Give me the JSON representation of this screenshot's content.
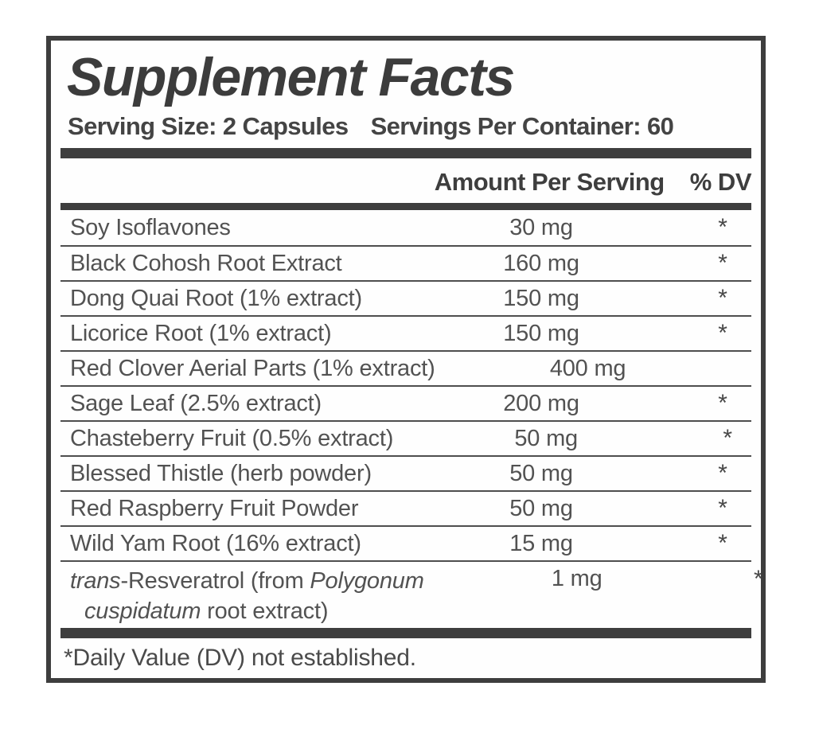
{
  "panel": {
    "title": "Supplement Facts",
    "serving_size": "Serving Size: 2 Capsules",
    "servings_per_container": "Servings Per Container: 60",
    "columns": {
      "amount": "Amount Per Serving",
      "dv": "% DV"
    },
    "rows": [
      {
        "name": "Soy Isoflavones",
        "amount": "30 mg",
        "dv": "*"
      },
      {
        "name": "Black Cohosh Root Extract",
        "amount": "160 mg",
        "dv": "*"
      },
      {
        "name": "Dong Quai Root (1% extract)",
        "amount": "150 mg",
        "dv": "*"
      },
      {
        "name": "Licorice Root (1% extract)",
        "amount": "150 mg",
        "dv": "*"
      },
      {
        "name": "Red Clover Aerial Parts (1% extract)",
        "amount": "400 mg",
        "dv": "*"
      },
      {
        "name": "Sage Leaf (2.5% extract)",
        "amount": "200 mg",
        "dv": "*"
      },
      {
        "name": "Chasteberry Fruit (0.5% extract)",
        "amount": "50 mg",
        "dv": "*"
      },
      {
        "name": "Blessed Thistle (herb powder)",
        "amount": "50 mg",
        "dv": "*"
      },
      {
        "name": "Red Raspberry Fruit Powder",
        "amount": "50 mg",
        "dv": "*"
      },
      {
        "name": "Wild Yam Root (16% extract)",
        "amount": "15 mg",
        "dv": "*"
      }
    ],
    "last_row": {
      "name_italic_1": "trans",
      "name_regular_1": "-Resveratrol (from ",
      "name_italic_2": "Polygonum",
      "line2_italic": "cuspidatum",
      "line2_regular": " root extract)",
      "amount": "1 mg",
      "dv": "*"
    },
    "footnote": "*Daily Value (DV) not established.",
    "colors": {
      "frame": "#3e3e3e",
      "thick_divider": "#3e3e3e",
      "row_divider": "#4e4e4e",
      "heading_text": "#3c3c3c",
      "body_text": "#525252",
      "background": "#ffffff"
    }
  }
}
